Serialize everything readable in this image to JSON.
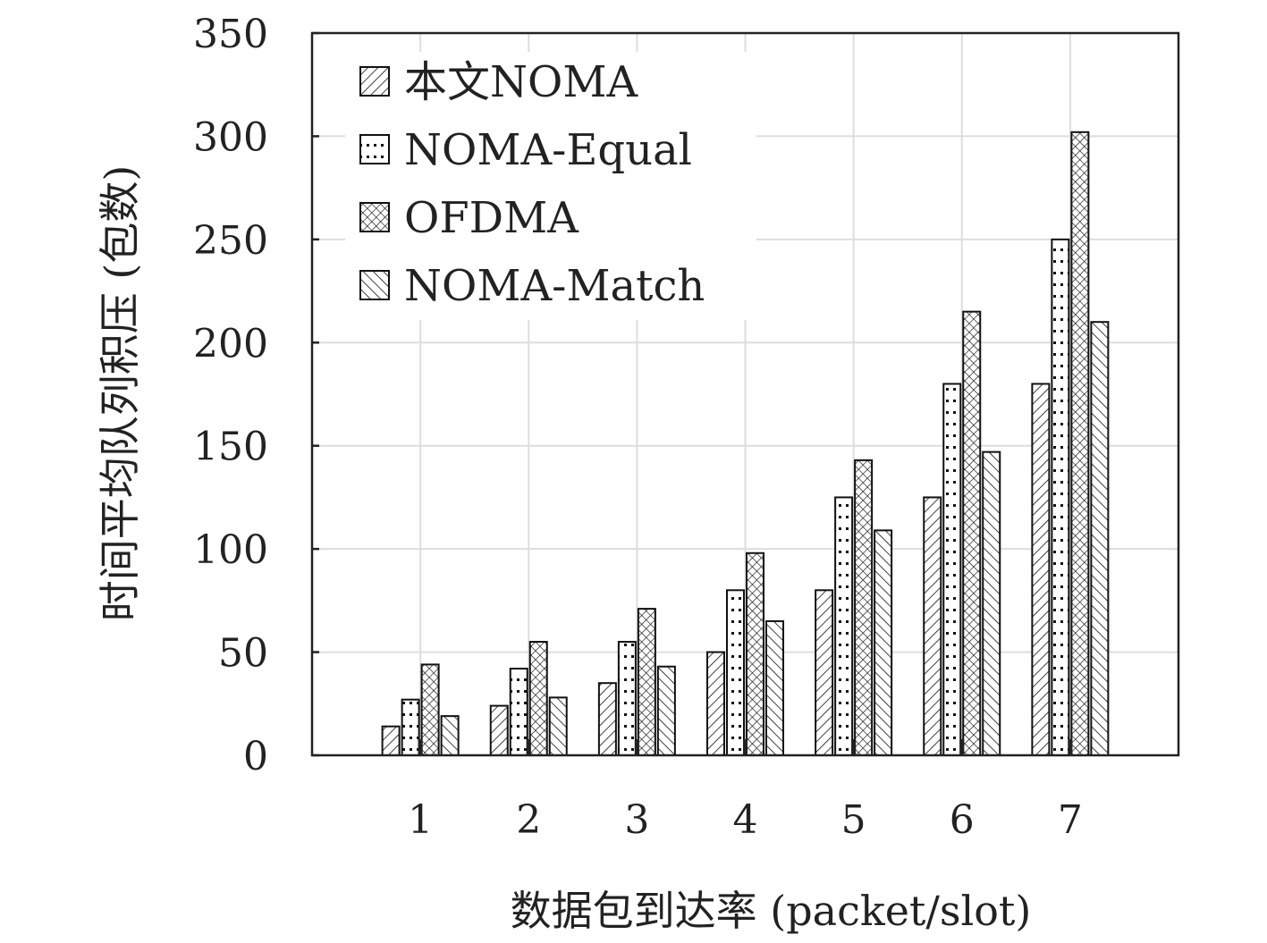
{
  "chart_data": {
    "type": "bar",
    "title": "",
    "xlabel": "数据包到达率 (packet/slot)",
    "ylabel": "时间平均队列积压 (包数)",
    "categories": [
      "1",
      "2",
      "3",
      "4",
      "5",
      "6",
      "7"
    ],
    "xlim": [
      0,
      8
    ],
    "ylim": [
      0,
      350
    ],
    "yticks": [
      "0",
      "50",
      "100",
      "150",
      "200",
      "250",
      "300",
      "350"
    ],
    "grid": true,
    "legend_position": "top-left",
    "series": [
      {
        "name": "本文NOMA",
        "pattern": "diagonal",
        "values": [
          14,
          24,
          35,
          50,
          80,
          125,
          180
        ]
      },
      {
        "name": "NOMA-Equal",
        "pattern": "dots",
        "values": [
          27,
          42,
          55,
          80,
          125,
          180,
          250
        ]
      },
      {
        "name": "OFDMA",
        "pattern": "crosshatch",
        "values": [
          44,
          55,
          71,
          98,
          143,
          215,
          302
        ]
      },
      {
        "name": "NOMA-Match",
        "pattern": "backdiagonal",
        "values": [
          19,
          28,
          43,
          65,
          109,
          147,
          210
        ]
      }
    ]
  }
}
